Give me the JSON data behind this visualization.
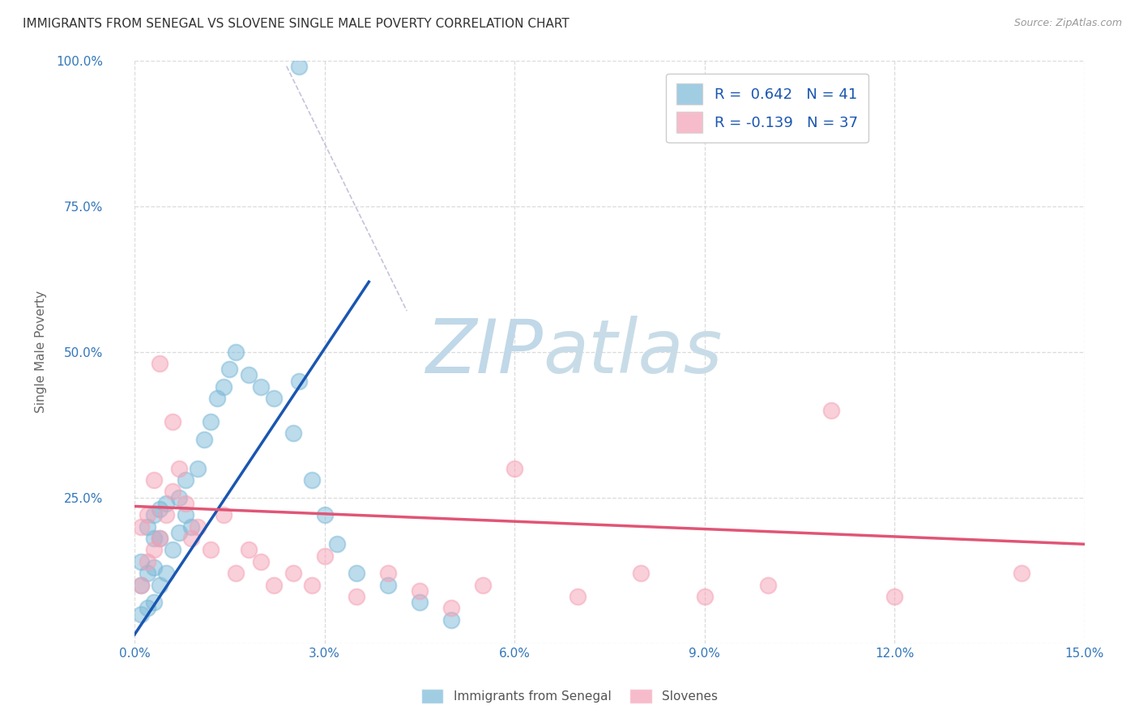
{
  "title": "IMMIGRANTS FROM SENEGAL VS SLOVENE SINGLE MALE POVERTY CORRELATION CHART",
  "source": "Source: ZipAtlas.com",
  "ylabel": "Single Male Poverty",
  "xlim": [
    0.0,
    0.15
  ],
  "ylim": [
    0.0,
    1.0
  ],
  "xticks": [
    0.0,
    0.03,
    0.06,
    0.09,
    0.12,
    0.15
  ],
  "xtick_labels": [
    "0.0%",
    "3.0%",
    "6.0%",
    "9.0%",
    "12.0%",
    "15.0%"
  ],
  "yticks": [
    0.0,
    0.25,
    0.5,
    0.75,
    1.0
  ],
  "ytick_labels": [
    "",
    "25.0%",
    "50.0%",
    "75.0%",
    "100.0%"
  ],
  "scatter_blue_x": [
    0.001,
    0.001,
    0.001,
    0.002,
    0.002,
    0.002,
    0.003,
    0.003,
    0.003,
    0.003,
    0.004,
    0.004,
    0.004,
    0.005,
    0.005,
    0.006,
    0.007,
    0.007,
    0.008,
    0.008,
    0.009,
    0.01,
    0.011,
    0.012,
    0.013,
    0.014,
    0.015,
    0.016,
    0.018,
    0.02,
    0.022,
    0.025,
    0.028,
    0.03,
    0.032,
    0.035,
    0.04,
    0.045,
    0.05,
    0.026,
    0.026
  ],
  "scatter_blue_y": [
    0.05,
    0.1,
    0.14,
    0.06,
    0.12,
    0.2,
    0.07,
    0.13,
    0.18,
    0.22,
    0.1,
    0.18,
    0.23,
    0.12,
    0.24,
    0.16,
    0.19,
    0.25,
    0.22,
    0.28,
    0.2,
    0.3,
    0.35,
    0.38,
    0.42,
    0.44,
    0.47,
    0.5,
    0.46,
    0.44,
    0.42,
    0.36,
    0.28,
    0.22,
    0.17,
    0.12,
    0.1,
    0.07,
    0.04,
    0.99,
    0.45
  ],
  "scatter_pink_x": [
    0.001,
    0.001,
    0.002,
    0.002,
    0.003,
    0.003,
    0.004,
    0.004,
    0.005,
    0.006,
    0.006,
    0.007,
    0.008,
    0.009,
    0.01,
    0.012,
    0.014,
    0.016,
    0.018,
    0.02,
    0.022,
    0.025,
    0.028,
    0.03,
    0.035,
    0.04,
    0.045,
    0.05,
    0.055,
    0.06,
    0.07,
    0.08,
    0.09,
    0.1,
    0.11,
    0.12,
    0.14
  ],
  "scatter_pink_y": [
    0.1,
    0.2,
    0.14,
    0.22,
    0.16,
    0.28,
    0.18,
    0.48,
    0.22,
    0.26,
    0.38,
    0.3,
    0.24,
    0.18,
    0.2,
    0.16,
    0.22,
    0.12,
    0.16,
    0.14,
    0.1,
    0.12,
    0.1,
    0.15,
    0.08,
    0.12,
    0.09,
    0.06,
    0.1,
    0.3,
    0.08,
    0.12,
    0.08,
    0.1,
    0.4,
    0.08,
    0.12
  ],
  "blue_line_x": [
    0.0,
    0.037
  ],
  "blue_line_y": [
    0.015,
    0.62
  ],
  "pink_line_x": [
    0.0,
    0.15
  ],
  "pink_line_y": [
    0.235,
    0.17
  ],
  "dash_line_x": [
    0.024,
    0.043
  ],
  "dash_line_y": [
    0.99,
    0.57
  ],
  "blue_scatter_color": "#7ab8d8",
  "pink_scatter_color": "#f5a0b5",
  "blue_line_color": "#1a56b0",
  "pink_line_color": "#e05575",
  "watermark_zip_color": "#c0d8e8",
  "watermark_atlas_color": "#c8dce8",
  "background_color": "#ffffff",
  "grid_color": "#d8d8d8",
  "title_color": "#333333",
  "axis_tick_color": "#3377bb",
  "ylabel_color": "#666666",
  "source_color": "#999999",
  "legend1_label1": "R =  0.642   N = 41",
  "legend1_label2": "R = -0.139   N = 37",
  "legend2_label1": "Immigrants from Senegal",
  "legend2_label2": "Slovenes"
}
